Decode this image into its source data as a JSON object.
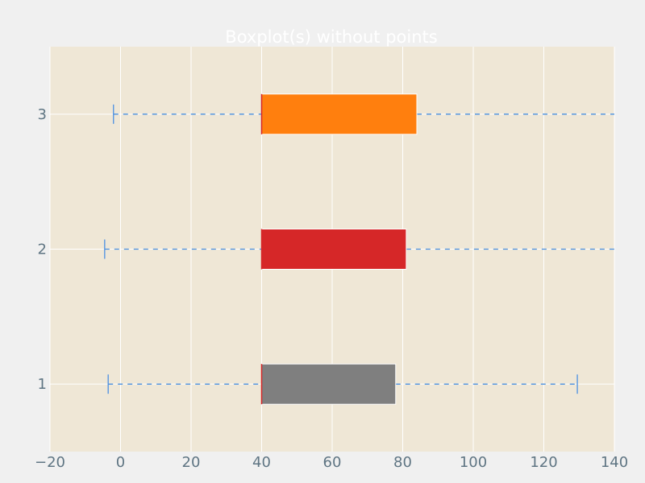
{
  "chart_data": {
    "type": "boxplot",
    "orientation": "horizontal",
    "title": "Boxplot(s) without points",
    "xlabel": "",
    "ylabel": "",
    "xlim": [
      -20,
      140
    ],
    "ylim": [
      0.5,
      3.5
    ],
    "x_ticks": [
      -20,
      0,
      20,
      40,
      60,
      80,
      100,
      120,
      140
    ],
    "x_tick_labels": [
      "−20",
      "0",
      "20",
      "40",
      "60",
      "80",
      "100",
      "120",
      "140"
    ],
    "y_ticks": [
      1,
      2,
      3
    ],
    "y_tick_labels": [
      "1",
      "2",
      "3"
    ],
    "grid": true,
    "boxes": [
      {
        "position": 1,
        "whisker_low": -3.5,
        "q1": 40,
        "median": 40,
        "q3": 78,
        "whisker_high": 129.5,
        "color": "#7f7f7f"
      },
      {
        "position": 2,
        "whisker_low": -4.5,
        "q1": 40,
        "median": 40,
        "q3": 81,
        "whisker_high": 140,
        "color": "#d62728"
      },
      {
        "position": 3,
        "whisker_low": -2,
        "q1": 40,
        "median": 40,
        "q3": 84,
        "whisker_high": 140,
        "color": "#ff7f0e"
      }
    ],
    "colors": {
      "plot_background": "#efe7d6",
      "figure_background": "#f0f0f0",
      "grid": "#ffffff",
      "whisker": "#4a90e2",
      "median": "#d62728",
      "tick_text": "#5f7583",
      "title_text": "#ffffff"
    }
  }
}
